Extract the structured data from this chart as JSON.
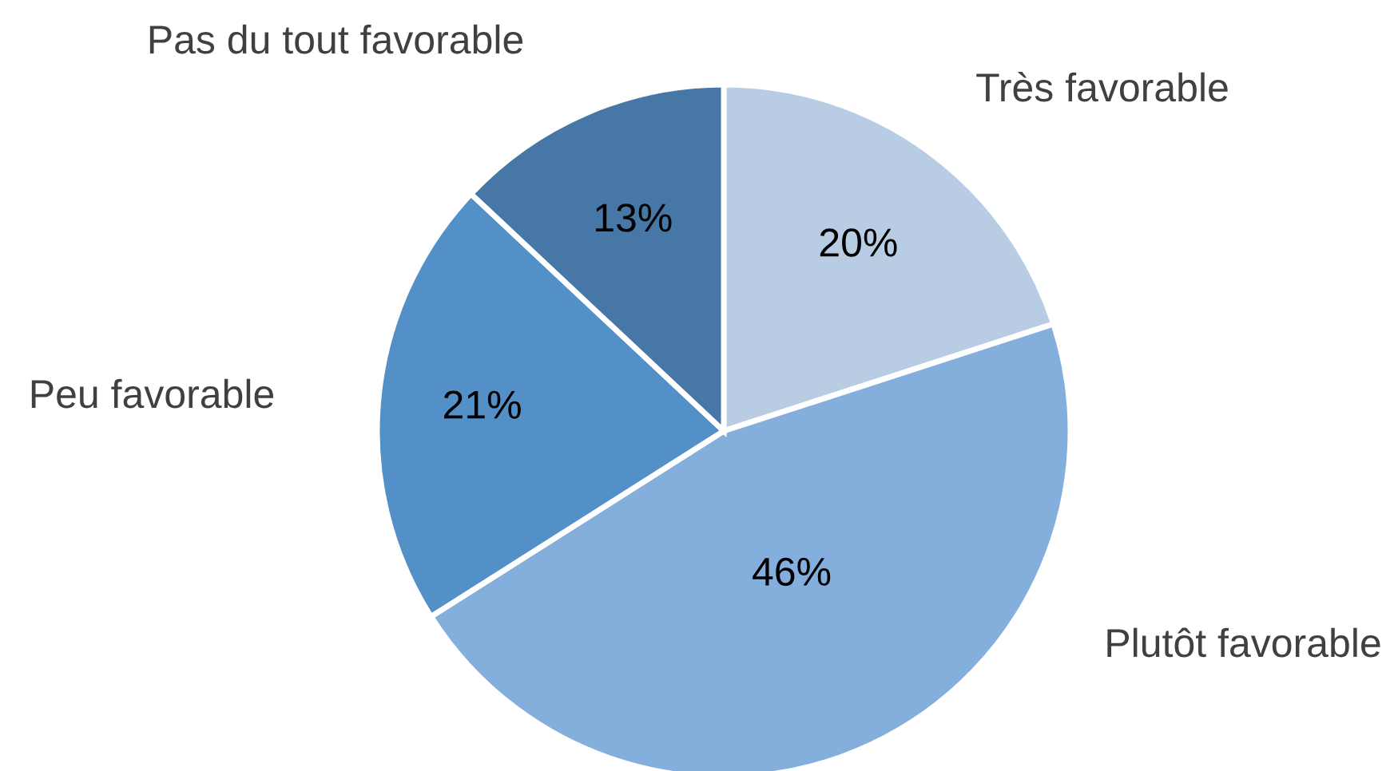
{
  "chart_data": {
    "type": "pie",
    "categories": [
      "Très favorable",
      "Plutôt favorable",
      "Peu favorable",
      "Pas du tout favorable"
    ],
    "values": [
      20,
      46,
      21,
      13
    ],
    "value_labels": [
      "20%",
      "46%",
      "21%",
      "13%"
    ],
    "colors": [
      "#b8cce4",
      "#84aedb",
      "#5390c8",
      "#4677a7"
    ]
  }
}
